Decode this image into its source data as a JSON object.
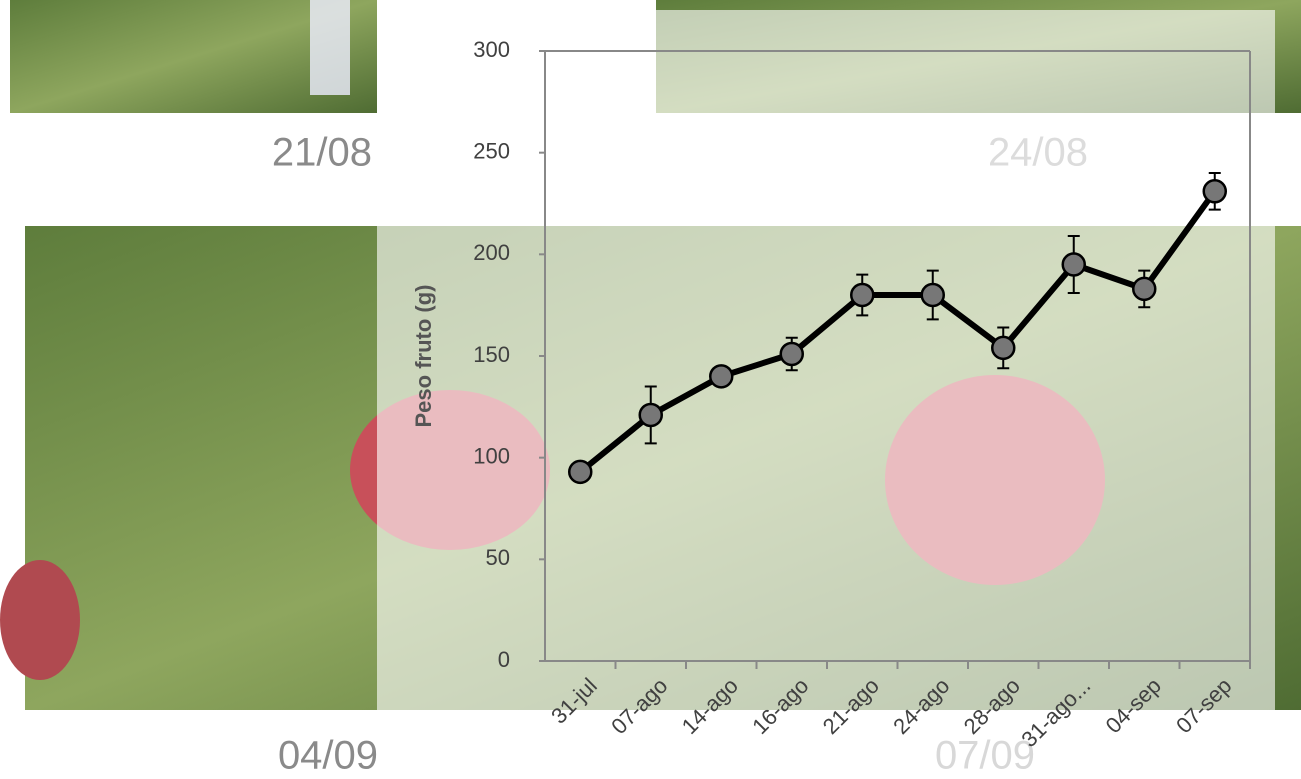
{
  "photo_labels": [
    "21/08",
    "24/08",
    "04/09",
    "07/09"
  ],
  "chart_data": {
    "type": "line",
    "y_label": "Peso fruto (g)",
    "categories": [
      "31-jul",
      "07-ago",
      "14-ago",
      "16-ago",
      "21-ago",
      "24-ago",
      "28-ago",
      "31-ago...",
      "04-sep",
      "07-sep"
    ],
    "values": [
      93,
      121,
      140,
      151,
      180,
      180,
      154,
      195,
      183,
      231
    ],
    "errors": [
      0,
      14,
      3,
      8,
      10,
      12,
      10,
      14,
      9,
      9
    ],
    "color": "#000000",
    "marker_color": "#777777",
    "ylim": [
      0,
      300
    ],
    "yticks": [
      0,
      50,
      100,
      150,
      200,
      250,
      300
    ],
    "grid": false
  }
}
